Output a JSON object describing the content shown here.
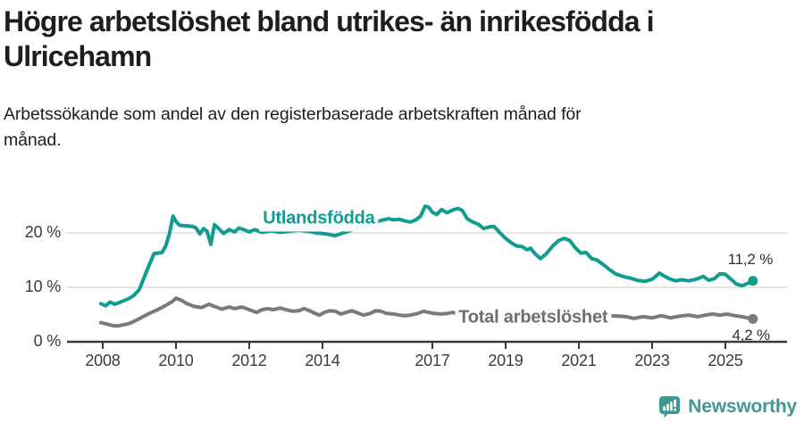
{
  "header": {
    "title_lines": [
      "Högre arbetslöshet bland utrikes- än inrikesfödda i",
      "Ulricehamn"
    ],
    "subtitle_lines": [
      "Arbetssökande som andel av den registerbaserade arbetskraften månad för",
      "månad."
    ]
  },
  "footer": {
    "brand_name": "Newsworthy"
  },
  "colors": {
    "accent_teal": "#109c8e",
    "series_gray": "#7a7a7a",
    "series_gray_label": "#6e6e6e",
    "text_dark": "#1e1e1e",
    "axis": "#3a3a3a",
    "grid": "#dcdcdc",
    "value_label": "#2e2e2e",
    "logo_teal": "#3f9894"
  },
  "chart_data": {
    "type": "line",
    "title": "Högre arbetslöshet bland utrikes- än inrikesfödda i Ulricehamn",
    "subtitle": "Arbetssökande som andel av den registerbaserade arbetskraften månad för månad.",
    "grid": "horizontal",
    "legend_position": "inline-labels",
    "x_axis": {
      "ticks": [
        2008,
        2010,
        2012,
        2014,
        2017,
        2019,
        2021,
        2023,
        2025
      ],
      "tick_labels": [
        "2008",
        "2010",
        "2012",
        "2014",
        "2017",
        "2019",
        "2021",
        "2023",
        "2025"
      ],
      "range_years": [
        2007.9,
        2026.2
      ]
    },
    "y_axis": {
      "ticks": [
        0,
        10,
        20
      ],
      "tick_labels": [
        "0 %",
        "10 %",
        "20 %"
      ],
      "unit": "%",
      "range": [
        0,
        26
      ]
    },
    "series": [
      {
        "id": "utlandsfodda",
        "name": "Utlandsfödda",
        "color": "#109c8e",
        "label_color": "#109c8e",
        "label_at": [
          2013.9,
          22.6
        ],
        "end_value": 11.2,
        "end_label": "11,2 %",
        "end_label_at": [
          2025.68,
          15.1
        ],
        "points": [
          [
            2007.95,
            7.0
          ],
          [
            2008.08,
            6.6
          ],
          [
            2008.2,
            7.3
          ],
          [
            2008.33,
            6.9
          ],
          [
            2008.45,
            7.2
          ],
          [
            2008.55,
            7.5
          ],
          [
            2008.7,
            7.9
          ],
          [
            2008.85,
            8.5
          ],
          [
            2009.0,
            9.6
          ],
          [
            2009.1,
            11.3
          ],
          [
            2009.2,
            13.0
          ],
          [
            2009.3,
            14.6
          ],
          [
            2009.4,
            16.2
          ],
          [
            2009.5,
            16.3
          ],
          [
            2009.62,
            16.4
          ],
          [
            2009.72,
            17.6
          ],
          [
            2009.82,
            19.8
          ],
          [
            2009.92,
            23.1
          ],
          [
            2010.0,
            22.1
          ],
          [
            2010.1,
            21.4
          ],
          [
            2010.3,
            21.3
          ],
          [
            2010.45,
            21.2
          ],
          [
            2010.55,
            20.9
          ],
          [
            2010.65,
            19.8
          ],
          [
            2010.75,
            20.8
          ],
          [
            2010.85,
            20.3
          ],
          [
            2010.95,
            17.9
          ],
          [
            2011.05,
            21.5
          ],
          [
            2011.15,
            20.9
          ],
          [
            2011.3,
            19.9
          ],
          [
            2011.45,
            20.6
          ],
          [
            2011.6,
            20.2
          ],
          [
            2011.72,
            20.9
          ],
          [
            2011.85,
            20.6
          ],
          [
            2012.0,
            20.2
          ],
          [
            2012.15,
            20.6
          ],
          [
            2012.35,
            20.1
          ],
          [
            2012.6,
            20.4
          ],
          [
            2012.85,
            20.1
          ],
          [
            2013.1,
            20.3
          ],
          [
            2013.35,
            20.5
          ],
          [
            2013.6,
            20.3
          ],
          [
            2013.85,
            20.0
          ],
          [
            2014.1,
            19.8
          ],
          [
            2014.35,
            19.5
          ],
          [
            2014.6,
            20.1
          ],
          [
            2014.85,
            20.6
          ],
          [
            2015.1,
            21.1
          ],
          [
            2015.35,
            21.8
          ],
          [
            2015.6,
            22.3
          ],
          [
            2015.8,
            22.6
          ],
          [
            2015.95,
            22.4
          ],
          [
            2016.1,
            22.5
          ],
          [
            2016.25,
            22.2
          ],
          [
            2016.4,
            22.0
          ],
          [
            2016.55,
            22.4
          ],
          [
            2016.68,
            23.1
          ],
          [
            2016.8,
            24.9
          ],
          [
            2016.9,
            24.7
          ],
          [
            2017.0,
            23.8
          ],
          [
            2017.12,
            23.4
          ],
          [
            2017.25,
            24.3
          ],
          [
            2017.4,
            23.7
          ],
          [
            2017.55,
            24.2
          ],
          [
            2017.7,
            24.5
          ],
          [
            2017.82,
            24.1
          ],
          [
            2017.95,
            22.6
          ],
          [
            2018.1,
            22.0
          ],
          [
            2018.25,
            21.6
          ],
          [
            2018.4,
            20.8
          ],
          [
            2018.55,
            21.1
          ],
          [
            2018.68,
            21.2
          ],
          [
            2018.82,
            20.2
          ],
          [
            2019.0,
            19.0
          ],
          [
            2019.15,
            18.2
          ],
          [
            2019.3,
            17.6
          ],
          [
            2019.45,
            17.5
          ],
          [
            2019.58,
            16.9
          ],
          [
            2019.68,
            17.2
          ],
          [
            2019.8,
            16.2
          ],
          [
            2019.95,
            15.3
          ],
          [
            2020.1,
            16.1
          ],
          [
            2020.3,
            17.7
          ],
          [
            2020.45,
            18.6
          ],
          [
            2020.6,
            19.0
          ],
          [
            2020.75,
            18.6
          ],
          [
            2020.9,
            17.3
          ],
          [
            2021.05,
            16.3
          ],
          [
            2021.2,
            16.4
          ],
          [
            2021.35,
            15.3
          ],
          [
            2021.5,
            15.0
          ],
          [
            2021.7,
            14.0
          ],
          [
            2021.85,
            13.2
          ],
          [
            2022.0,
            12.5
          ],
          [
            2022.2,
            12.0
          ],
          [
            2022.4,
            11.7
          ],
          [
            2022.6,
            11.3
          ],
          [
            2022.8,
            11.1
          ],
          [
            2023.0,
            11.5
          ],
          [
            2023.2,
            12.6
          ],
          [
            2023.35,
            12.0
          ],
          [
            2023.5,
            11.5
          ],
          [
            2023.65,
            11.2
          ],
          [
            2023.8,
            11.4
          ],
          [
            2024.0,
            11.2
          ],
          [
            2024.2,
            11.5
          ],
          [
            2024.4,
            12.0
          ],
          [
            2024.55,
            11.3
          ],
          [
            2024.7,
            11.6
          ],
          [
            2024.85,
            12.5
          ],
          [
            2025.0,
            12.4
          ],
          [
            2025.15,
            11.5
          ],
          [
            2025.3,
            10.6
          ],
          [
            2025.45,
            10.3
          ],
          [
            2025.6,
            10.7
          ],
          [
            2025.75,
            11.2
          ]
        ]
      },
      {
        "id": "total",
        "name": "Total arbetslöshet",
        "color": "#7a7a7a",
        "label_color": "#6e6e6e",
        "label_at": [
          2019.75,
          4.4
        ],
        "end_value": 4.2,
        "end_label": "4,2 %",
        "end_label_at": [
          2025.7,
          1.1
        ],
        "points": [
          [
            2007.95,
            3.5
          ],
          [
            2008.1,
            3.3
          ],
          [
            2008.25,
            3.0
          ],
          [
            2008.4,
            2.9
          ],
          [
            2008.55,
            3.1
          ],
          [
            2008.7,
            3.3
          ],
          [
            2008.9,
            3.9
          ],
          [
            2009.1,
            4.6
          ],
          [
            2009.3,
            5.3
          ],
          [
            2009.5,
            5.9
          ],
          [
            2009.7,
            6.6
          ],
          [
            2009.9,
            7.4
          ],
          [
            2010.0,
            8.0
          ],
          [
            2010.15,
            7.6
          ],
          [
            2010.3,
            7.0
          ],
          [
            2010.5,
            6.5
          ],
          [
            2010.7,
            6.3
          ],
          [
            2010.9,
            6.9
          ],
          [
            2011.05,
            6.5
          ],
          [
            2011.25,
            6.0
          ],
          [
            2011.45,
            6.4
          ],
          [
            2011.6,
            6.1
          ],
          [
            2011.8,
            6.4
          ],
          [
            2012.0,
            5.9
          ],
          [
            2012.2,
            5.4
          ],
          [
            2012.35,
            5.9
          ],
          [
            2012.5,
            6.1
          ],
          [
            2012.65,
            5.9
          ],
          [
            2012.85,
            6.2
          ],
          [
            2013.0,
            5.9
          ],
          [
            2013.2,
            5.6
          ],
          [
            2013.35,
            5.7
          ],
          [
            2013.5,
            6.1
          ],
          [
            2013.65,
            5.7
          ],
          [
            2013.8,
            5.2
          ],
          [
            2013.92,
            4.9
          ],
          [
            2014.05,
            5.4
          ],
          [
            2014.2,
            5.7
          ],
          [
            2014.35,
            5.6
          ],
          [
            2014.5,
            5.1
          ],
          [
            2014.65,
            5.4
          ],
          [
            2014.8,
            5.7
          ],
          [
            2015.0,
            5.2
          ],
          [
            2015.12,
            4.9
          ],
          [
            2015.3,
            5.2
          ],
          [
            2015.45,
            5.7
          ],
          [
            2015.6,
            5.6
          ],
          [
            2015.75,
            5.2
          ],
          [
            2015.95,
            5.1
          ],
          [
            2016.1,
            4.9
          ],
          [
            2016.25,
            4.8
          ],
          [
            2016.4,
            4.9
          ],
          [
            2016.6,
            5.2
          ],
          [
            2016.75,
            5.6
          ],
          [
            2016.9,
            5.4
          ],
          [
            2017.05,
            5.2
          ],
          [
            2017.25,
            5.1
          ],
          [
            2017.4,
            5.2
          ],
          [
            2017.55,
            5.4
          ],
          [
            2017.75,
            5.1
          ],
          [
            2018.0,
            4.9
          ],
          [
            2018.35,
            4.7
          ],
          [
            2018.7,
            4.6
          ],
          [
            2019.1,
            4.7
          ],
          [
            2019.5,
            4.6
          ],
          [
            2019.9,
            4.9
          ],
          [
            2020.2,
            5.5
          ],
          [
            2020.5,
            6.0
          ],
          [
            2020.8,
            5.9
          ],
          [
            2021.1,
            5.6
          ],
          [
            2021.45,
            5.1
          ],
          [
            2021.8,
            4.8
          ],
          [
            2022.1,
            4.7
          ],
          [
            2022.3,
            4.6
          ],
          [
            2022.5,
            4.3
          ],
          [
            2022.75,
            4.6
          ],
          [
            2023.0,
            4.4
          ],
          [
            2023.25,
            4.8
          ],
          [
            2023.5,
            4.4
          ],
          [
            2023.75,
            4.7
          ],
          [
            2024.0,
            4.9
          ],
          [
            2024.25,
            4.6
          ],
          [
            2024.45,
            4.9
          ],
          [
            2024.65,
            5.1
          ],
          [
            2024.85,
            4.9
          ],
          [
            2025.05,
            5.1
          ],
          [
            2025.25,
            4.8
          ],
          [
            2025.45,
            4.6
          ],
          [
            2025.6,
            4.4
          ],
          [
            2025.75,
            4.2
          ]
        ]
      }
    ]
  }
}
